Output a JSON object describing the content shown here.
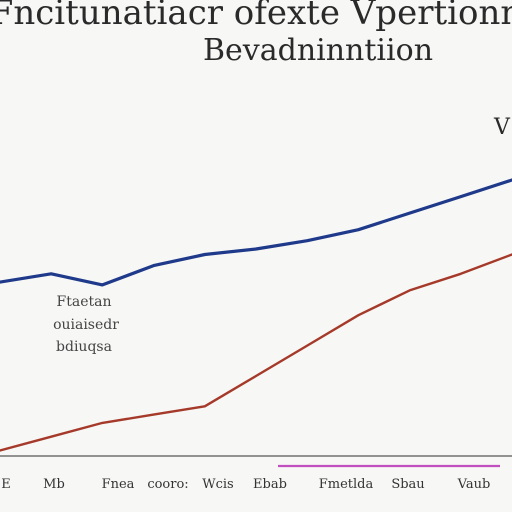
{
  "chart_data": {
    "type": "line",
    "title": "Fncitunatiacr ofexte Vpertionn",
    "subtitle": "Bevadninntiion",
    "corner_mark": "V",
    "annotation": [
      "Ftaetan",
      "ouiaisedr",
      "bdiuqsa"
    ],
    "x_tick_labels": [
      "E",
      "Mb",
      "Fnea",
      "cooro:",
      "Wcis",
      "Ebab",
      "Fmetlda",
      "Sbau",
      "Vaub"
    ],
    "x": [
      0,
      1,
      2,
      3,
      4,
      5,
      6,
      7,
      8,
      9,
      10
    ],
    "series": [
      {
        "values": [
          63,
          66,
          62,
          69,
          73,
          75,
          78,
          82,
          88,
          94,
          100
        ],
        "color": "#1f3a8a"
      },
      {
        "values": [
          2,
          7,
          12,
          15,
          18,
          29,
          40,
          51,
          60,
          66,
          73
        ],
        "color": "#a63a2a"
      }
    ],
    "highlight_color": "#c24fbf",
    "ylim": [
      0,
      100
    ],
    "grid": false,
    "legend": "none"
  }
}
